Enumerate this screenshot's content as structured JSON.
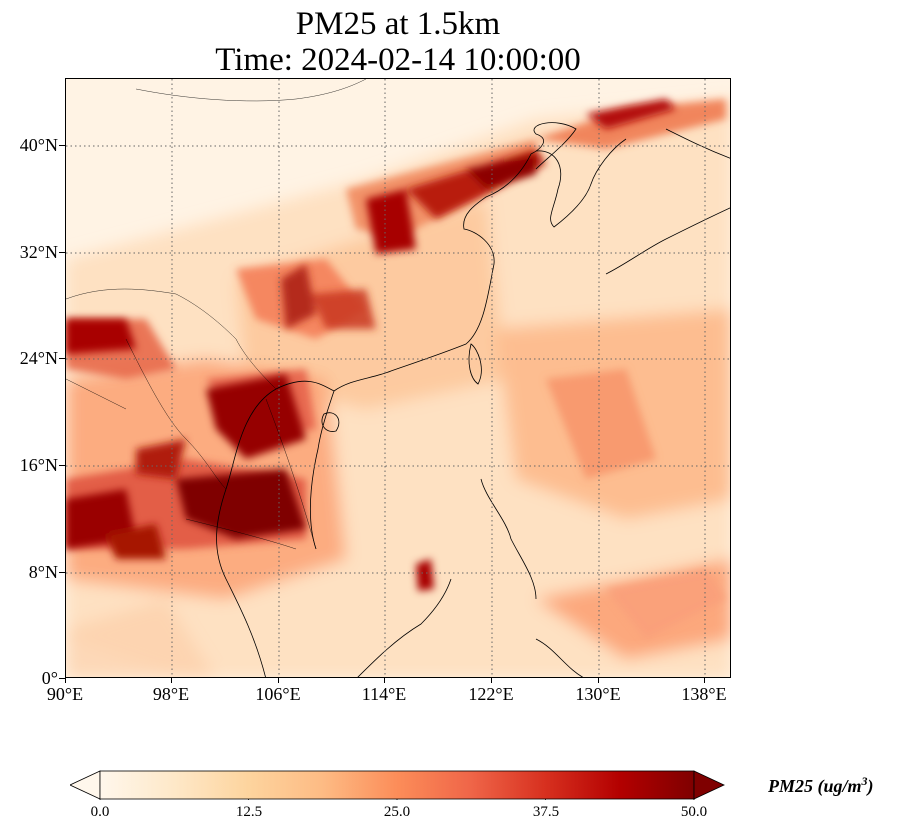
{
  "figure": {
    "title_line1": "PM25 at 1.5km",
    "title_line2": "Time: 2024-02-14 10:00:00"
  },
  "map": {
    "projection": "PlateCarree",
    "lon_range": [
      90,
      140
    ],
    "lat_range": [
      0,
      45
    ],
    "gridlines": "dotted",
    "lat_ticks": [
      {
        "value": 0,
        "label": "0°"
      },
      {
        "value": 8,
        "label": "8°N"
      },
      {
        "value": 16,
        "label": "16°N"
      },
      {
        "value": 24,
        "label": "24°N"
      },
      {
        "value": 32,
        "label": "32°N"
      },
      {
        "value": 40,
        "label": "40°N"
      }
    ],
    "lon_ticks": [
      {
        "value": 90,
        "label": "90°E"
      },
      {
        "value": 98,
        "label": "98°E"
      },
      {
        "value": 106,
        "label": "106°E"
      },
      {
        "value": 114,
        "label": "114°E"
      },
      {
        "value": 122,
        "label": "122°E"
      },
      {
        "value": 130,
        "label": "130°E"
      },
      {
        "value": 138,
        "label": "138°E"
      }
    ],
    "field": "PM25",
    "field_level": "1.5km"
  },
  "colorbar": {
    "colormap": "OrRd",
    "range": [
      0,
      50
    ],
    "extend": "both",
    "ticks": [
      "0.0",
      "12.5",
      "25.0",
      "37.5",
      "50.0"
    ],
    "label_main": "PM25 (ug/m",
    "label_sup": "3",
    "label_close": ")",
    "stops": [
      "#fff7ec",
      "#fee8c8",
      "#fdd49e",
      "#fdbb84",
      "#fc8d59",
      "#ef6548",
      "#d7301f",
      "#b30000",
      "#7f0000"
    ]
  }
}
